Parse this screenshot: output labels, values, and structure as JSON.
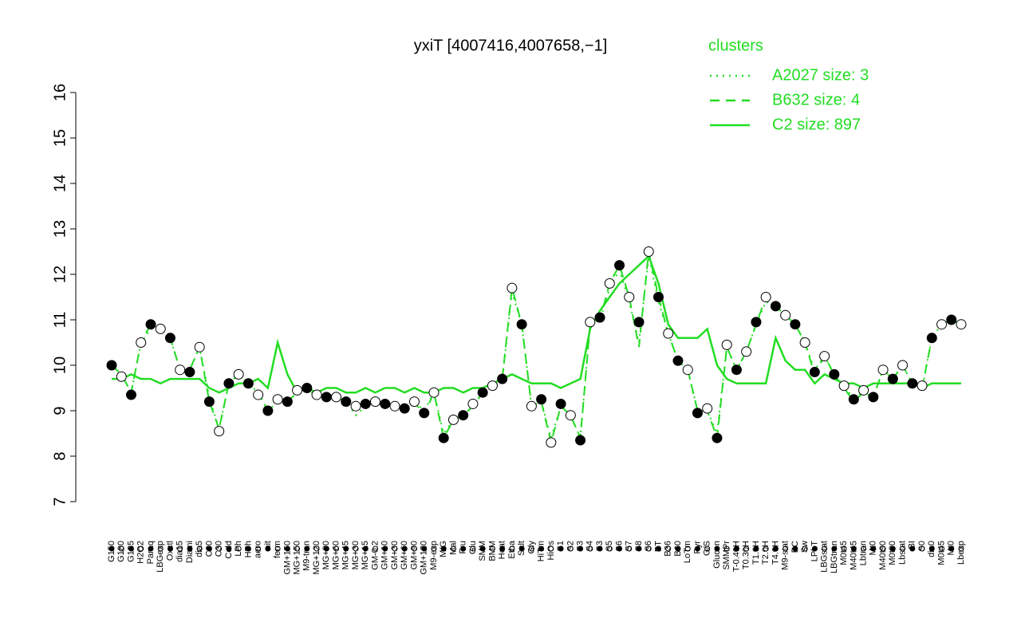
{
  "chart_data": {
    "type": "line",
    "title": "yxiT [4007416,4007658,−1]",
    "legend_title": "clusters",
    "legend_color": "#22dd22",
    "ylim": [
      7,
      16
    ],
    "yticks": [
      7,
      8,
      9,
      10,
      11,
      12,
      13,
      14,
      15,
      16
    ],
    "categories": [
      "G150",
      "G180",
      "G135",
      "H2O2",
      "Paraq",
      "LBGexp",
      "Oxctl",
      "dia15",
      "Diami",
      "dia5",
      "C90",
      "C30",
      "Cold",
      "LPh",
      "HPh",
      "aero",
      "nit",
      "ferm",
      "GM+150",
      "MG+150",
      "M9-tran",
      "MG+120",
      "MG+90",
      "MG+60",
      "MG+45",
      "MG+30",
      "MG+15",
      "GM-0.2",
      "GM+10",
      "GM+30",
      "GM+60",
      "GM+90",
      "GM+120",
      "M9-exp",
      "M/G",
      "Mal",
      "Fru",
      "Glu",
      "SMM",
      "BMM",
      "Heat",
      "Etha",
      "Salt",
      "Gly",
      "HiTm",
      "HiOs",
      "S1",
      "S2",
      "S3",
      "S4",
      "S3",
      "S5",
      "S6",
      "S7",
      "S8",
      "S6",
      "BT",
      "B36",
      "B60",
      "LoTm",
      "Pyr",
      "G/S",
      "Glucon",
      "SMMPr",
      "T-0.40H",
      "T0.30H",
      "T1.0H",
      "T2.0H",
      "T4.0H",
      "M9-stat",
      "BC",
      "Sw",
      "LPhT",
      "LBGstat",
      "LBGtran",
      "M0t45",
      "M40t45",
      "Lbtran",
      "Mt0",
      "M40t90",
      "M0t90",
      "Lbstat",
      "BI",
      "S0",
      "dia0",
      "M0t45",
      "Mt0",
      "Lbexp"
    ],
    "points": {
      "color": "#000000",
      "values": [
        10.0,
        9.75,
        9.35,
        10.5,
        10.9,
        10.8,
        10.6,
        9.9,
        9.85,
        10.4,
        9.2,
        8.55,
        9.6,
        9.8,
        9.6,
        9.35,
        9.0,
        9.25,
        9.2,
        9.45,
        9.5,
        9.35,
        9.3,
        9.3,
        9.2,
        9.1,
        9.15,
        9.2,
        9.15,
        9.1,
        9.05,
        9.2,
        8.95,
        9.4,
        8.4,
        8.8,
        8.9,
        9.15,
        9.4,
        9.55,
        9.7,
        11.7,
        10.9,
        9.1,
        9.25,
        8.3,
        9.15,
        8.9,
        8.35,
        10.95,
        11.05,
        11.8,
        12.2,
        11.5,
        10.95,
        12.5,
        11.5,
        10.7,
        10.1,
        9.9,
        8.95,
        9.05,
        8.4,
        10.45,
        9.9,
        10.3,
        10.95,
        11.5,
        11.3,
        11.1,
        10.9,
        10.5,
        9.85,
        10.2,
        9.8,
        9.55,
        9.25,
        9.45,
        9.3,
        9.9,
        9.7,
        10.0,
        9.6,
        9.55,
        10.6,
        10.9,
        11.0,
        10.9
      ]
    },
    "series": [
      {
        "name": "A2027 size: 3",
        "color": "#22dd22",
        "dash": "dotted",
        "values": [
          10.0,
          9.8,
          9.4,
          10.5,
          10.8,
          10.8,
          10.6,
          9.9,
          9.9,
          10.4,
          9.3,
          8.6,
          9.6,
          9.8,
          9.6,
          9.4,
          9.0,
          9.2,
          9.2,
          9.4,
          9.5,
          9.3,
          9.3,
          9.3,
          9.2,
          8.9,
          9.1,
          9.2,
          9.1,
          9.1,
          9.0,
          9.2,
          9.0,
          9.4,
          8.5,
          8.8,
          8.9,
          9.1,
          9.4,
          9.5,
          9.7,
          11.6,
          10.9,
          9.1,
          9.2,
          8.4,
          9.1,
          8.9,
          8.4,
          10.9,
          11.0,
          11.7,
          12.1,
          11.4,
          10.5,
          12.4,
          11.4,
          10.7,
          10.1,
          9.9,
          9.0,
          9.0,
          8.5,
          10.4,
          9.9,
          10.3,
          10.9,
          11.4,
          11.3,
          11.1,
          10.9,
          10.5,
          9.9,
          10.2,
          9.8,
          9.5,
          9.3,
          9.4,
          9.3,
          9.9,
          9.7,
          10.0,
          9.6,
          9.5,
          10.6,
          10.9,
          11.0,
          10.9
        ]
      },
      {
        "name": "B632 size: 4",
        "color": "#22dd22",
        "dash": "dashed",
        "values": [
          10.0,
          9.8,
          9.4,
          10.5,
          10.9,
          10.8,
          10.6,
          9.9,
          9.9,
          10.4,
          9.2,
          8.6,
          9.6,
          9.8,
          9.6,
          9.4,
          9.0,
          9.3,
          9.2,
          9.4,
          9.5,
          9.3,
          9.3,
          9.3,
          9.2,
          9.1,
          9.1,
          9.2,
          9.1,
          9.1,
          9.0,
          9.2,
          8.9,
          9.4,
          8.4,
          8.8,
          8.9,
          9.1,
          9.4,
          9.5,
          9.7,
          11.7,
          10.9,
          9.1,
          9.2,
          8.3,
          9.1,
          8.9,
          8.4,
          10.9,
          11.0,
          11.8,
          12.2,
          11.5,
          10.4,
          12.5,
          11.5,
          10.7,
          10.1,
          9.9,
          9.0,
          9.0,
          8.4,
          10.4,
          9.9,
          10.3,
          10.9,
          11.5,
          11.3,
          11.1,
          10.9,
          10.5,
          9.8,
          10.2,
          9.8,
          9.5,
          9.2,
          9.4,
          9.3,
          9.9,
          9.7,
          10.0,
          9.6,
          9.5,
          10.6,
          10.9,
          11.0,
          10.9
        ]
      },
      {
        "name": "C2 size: 897",
        "color": "#22dd22",
        "dash": "solid",
        "values": [
          9.7,
          9.7,
          9.8,
          9.7,
          9.7,
          9.6,
          9.7,
          9.7,
          9.7,
          9.7,
          9.5,
          9.4,
          9.5,
          9.6,
          9.6,
          9.7,
          9.5,
          10.5,
          9.8,
          9.4,
          9.5,
          9.4,
          9.5,
          9.5,
          9.4,
          9.4,
          9.5,
          9.4,
          9.5,
          9.5,
          9.4,
          9.5,
          9.4,
          9.4,
          9.5,
          9.5,
          9.4,
          9.5,
          9.5,
          9.6,
          9.7,
          9.8,
          9.7,
          9.6,
          9.6,
          9.6,
          9.5,
          9.6,
          9.7,
          10.8,
          11.2,
          11.5,
          11.8,
          12.0,
          12.2,
          12.4,
          11.8,
          10.9,
          10.6,
          10.6,
          10.6,
          10.8,
          10.0,
          9.7,
          9.6,
          9.6,
          9.6,
          9.6,
          10.6,
          10.1,
          9.9,
          9.9,
          9.6,
          9.8,
          9.7,
          9.6,
          9.6,
          9.5,
          9.6,
          9.6,
          9.6,
          9.6,
          9.6,
          9.5,
          9.6,
          9.6,
          9.6,
          9.6
        ]
      }
    ]
  }
}
